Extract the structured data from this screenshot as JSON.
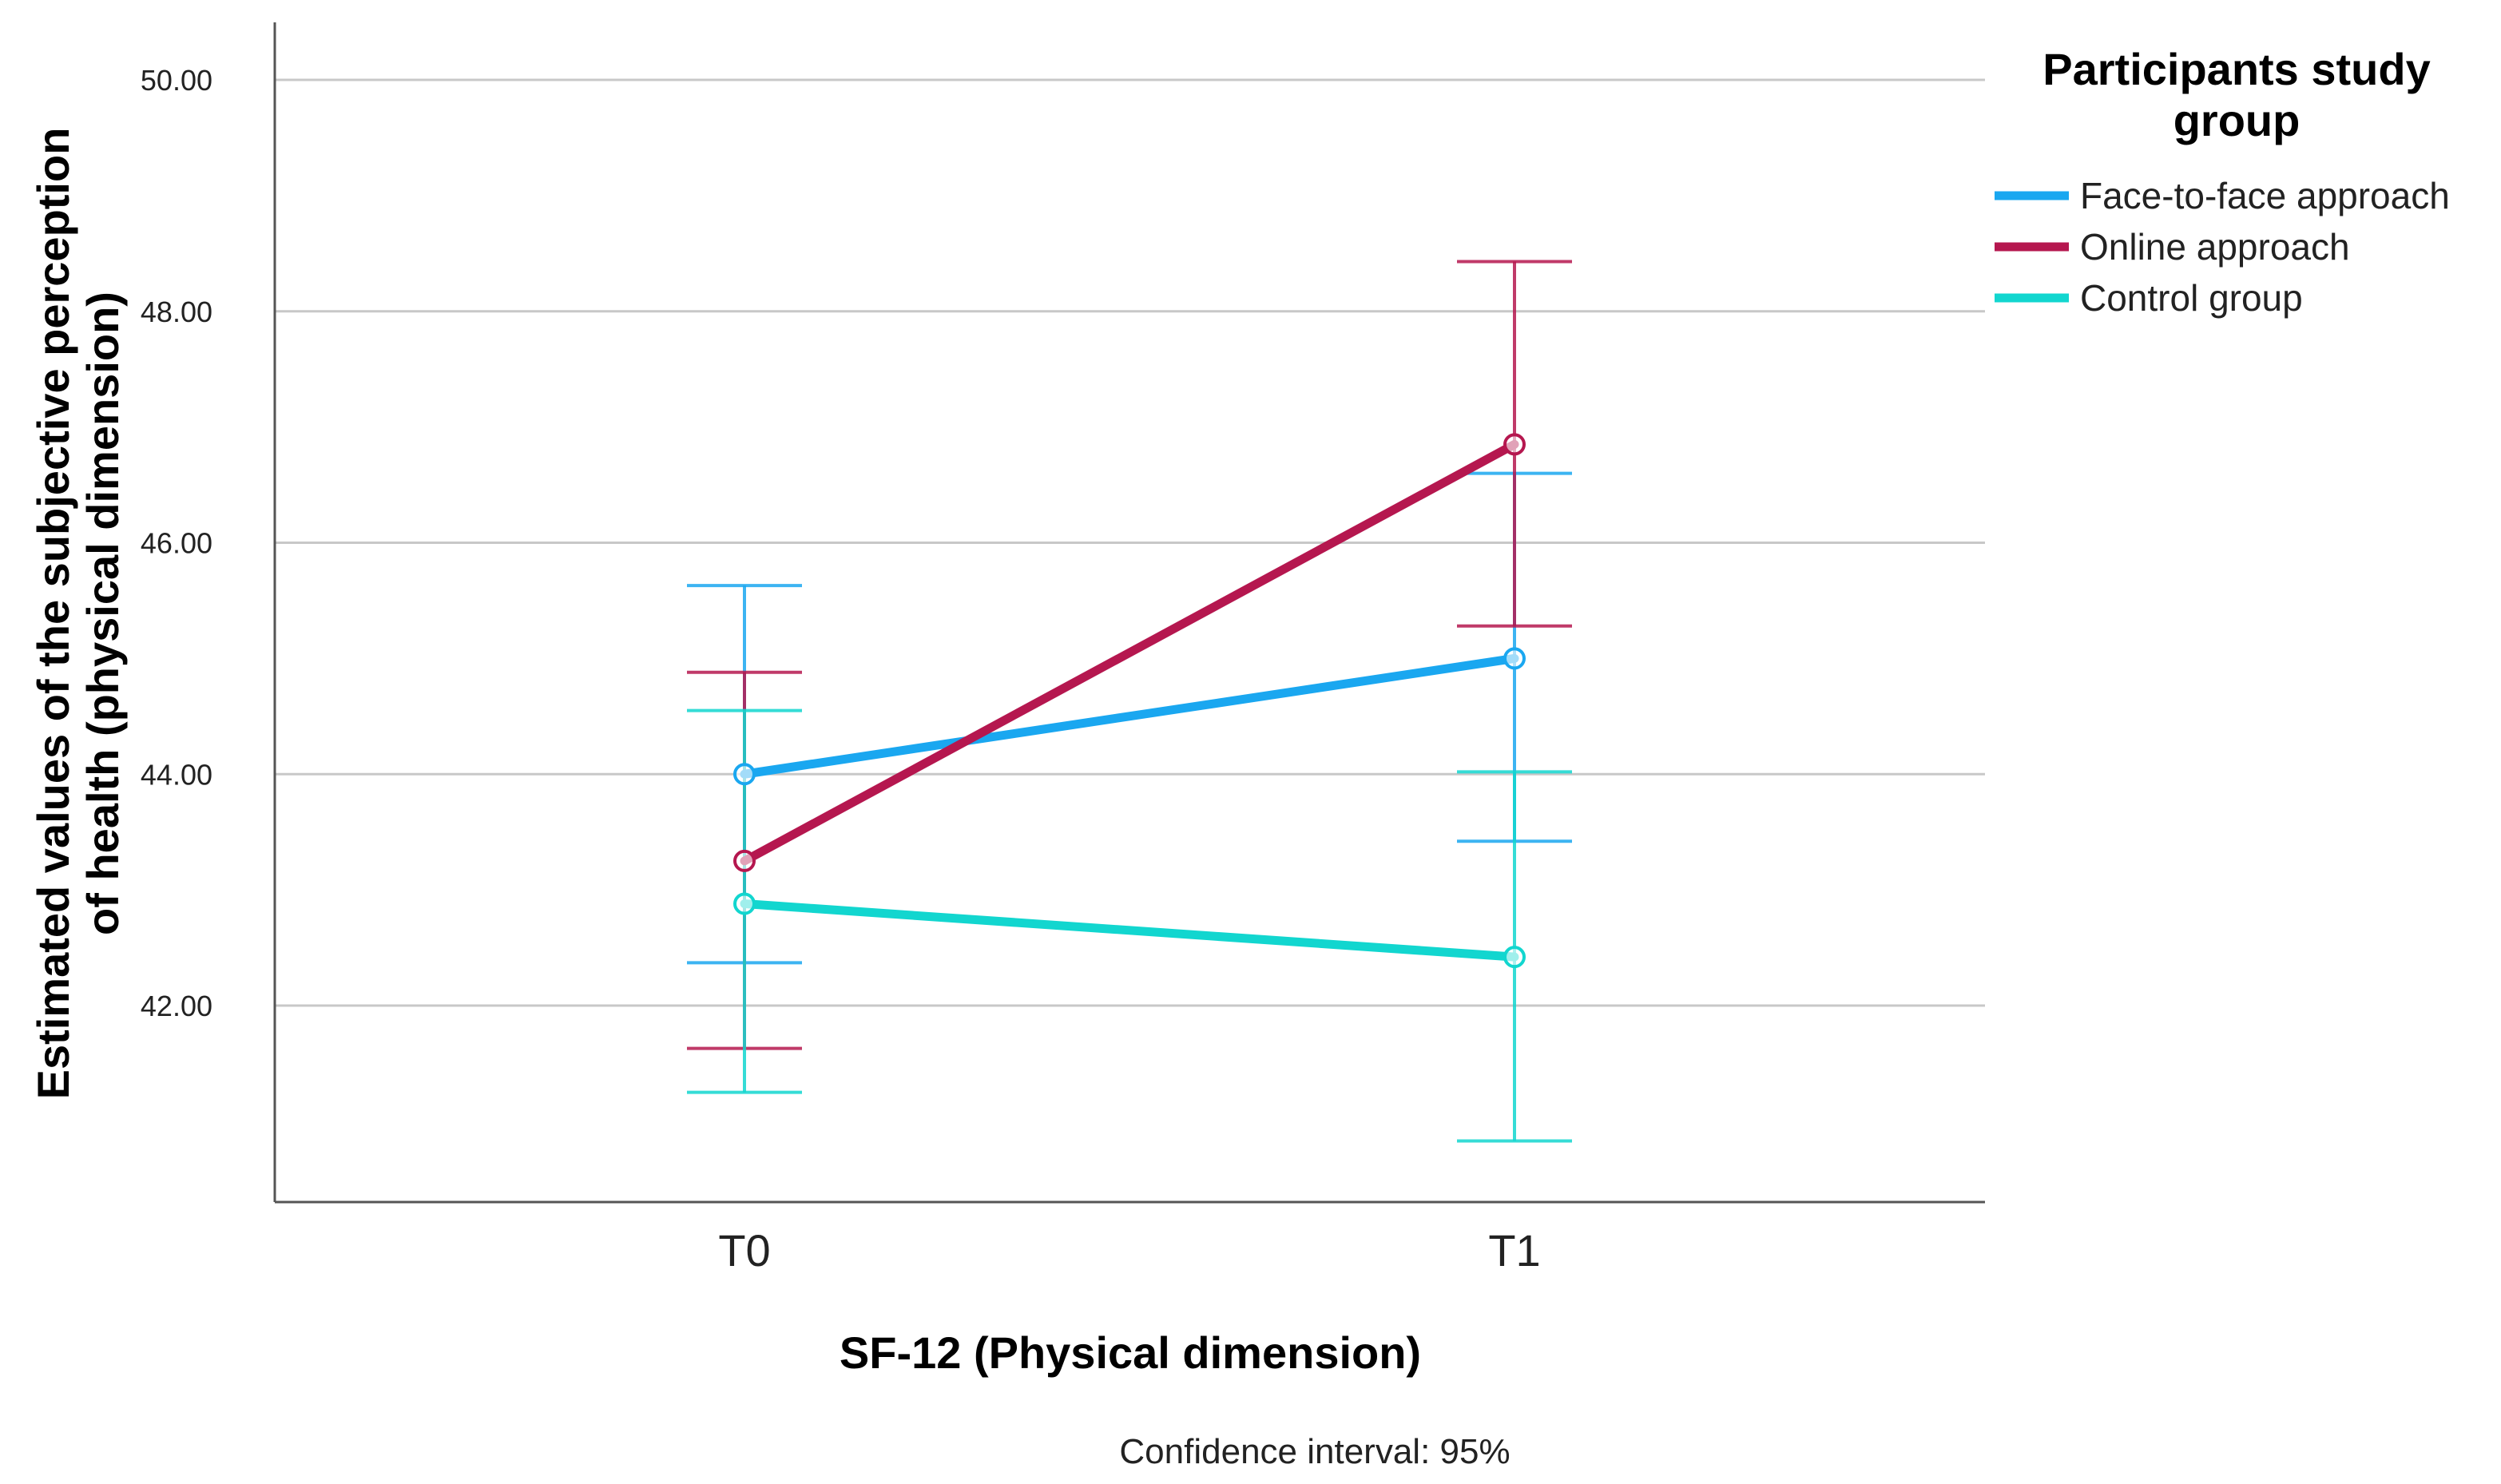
{
  "chart_data": {
    "type": "line",
    "xlabel": "SF-12 (Physical dimension)",
    "ylabel_lines": [
      "Estimated values of the subjective perception",
      "of health (physical dimension)"
    ],
    "categories": [
      "T0",
      "T1"
    ],
    "ylim": [
      40.3,
      50.5
    ],
    "yticks": [
      42,
      44,
      46,
      48,
      50
    ],
    "ytick_labels": [
      "42.00",
      "44.00",
      "46.00",
      "48.00",
      "50.00"
    ],
    "grid": true,
    "legend": {
      "title_lines": [
        "Participants study",
        "group"
      ],
      "position": "top-right"
    },
    "series": [
      {
        "name": "Face-to-face approach",
        "color": "#1aa7f0",
        "values": [
          44.0,
          45.0
        ],
        "ci_low": [
          42.37,
          43.42
        ],
        "ci_high": [
          45.63,
          46.6
        ]
      },
      {
        "name": "Online approach",
        "color": "#b5174f",
        "values": [
          43.25,
          46.85
        ],
        "ci_low": [
          41.63,
          45.28
        ],
        "ci_high": [
          44.88,
          48.43
        ]
      },
      {
        "name": "Control group",
        "color": "#12d6cf",
        "values": [
          42.88,
          42.42
        ],
        "ci_low": [
          41.25,
          40.83
        ],
        "ci_high": [
          44.55,
          44.02
        ]
      }
    ],
    "note": "Confidence interval: 95%"
  }
}
